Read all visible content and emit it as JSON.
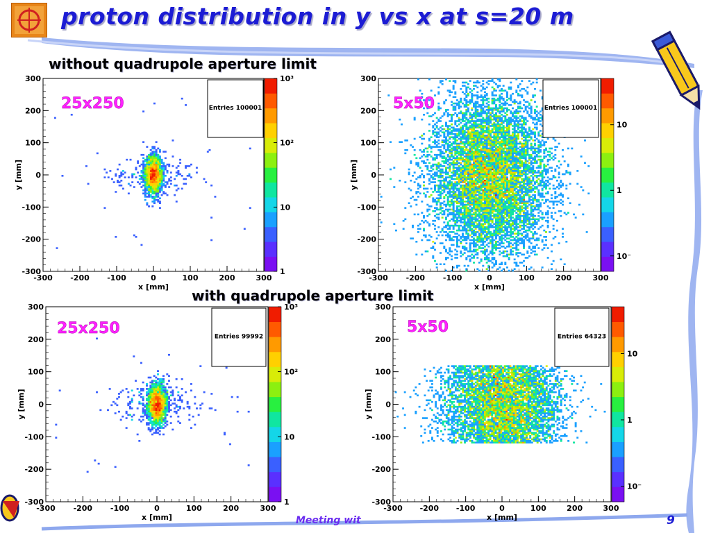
{
  "title": "proton distribution in y vs x at s=20 m",
  "sections": {
    "without": "without quadrupole aperture limit",
    "with": "with quadrupole aperture limit"
  },
  "footer": {
    "text": "Meeting wit",
    "page": "9"
  },
  "colors": {
    "title": "#1c1cd4",
    "label": "#ff22ff",
    "footer": "#6a2cf0"
  },
  "icons": [
    "pencil-icon",
    "logo-icon"
  ],
  "chart_data": [
    {
      "type": "heatmap",
      "label": "25x250",
      "entries_label": "Entries 100001",
      "xlabel": "x [mm]",
      "ylabel": "y [mm]",
      "xlim": [
        -300,
        300
      ],
      "ylim": [
        -300,
        300
      ],
      "x_ticks": [
        -300,
        -200,
        -100,
        0,
        100,
        200,
        300
      ],
      "y_ticks": [
        -300,
        -200,
        -100,
        0,
        100,
        200,
        300
      ],
      "core": {
        "x_center": 0,
        "y_center": 0,
        "x_sigma": 12,
        "y_sigma": 30
      },
      "ycut": null,
      "colorbar": {
        "scale": "log",
        "ticks": [
          {
            "label": "10³",
            "frac": 1.0
          },
          {
            "label": "10²",
            "frac": 0.667
          },
          {
            "label": "10",
            "frac": 0.333
          },
          {
            "label": "1",
            "frac": 0.0
          }
        ]
      }
    },
    {
      "type": "heatmap",
      "label": "5x50",
      "entries_label": "Entries 100001",
      "xlabel": "x [mm]",
      "ylabel": "y [mm]",
      "xlim": [
        -300,
        300
      ],
      "ylim": [
        -300,
        300
      ],
      "x_ticks": [
        -300,
        -200,
        -100,
        0,
        100,
        200,
        300
      ],
      "y_ticks": [
        -300,
        -200,
        -100,
        0,
        100,
        200,
        300
      ],
      "core": {
        "x_center": 0,
        "y_center": 0,
        "x_sigma": 80,
        "y_sigma": 130
      },
      "ycut": null,
      "colorbar": {
        "scale": "log",
        "ticks": [
          {
            "label": "10",
            "frac": 0.76
          },
          {
            "label": "1",
            "frac": 0.42
          },
          {
            "label": "10⁻",
            "frac": 0.08
          }
        ]
      }
    },
    {
      "type": "heatmap",
      "label": "25x250",
      "entries_label": "Entries  99992",
      "xlabel": "x [mm]",
      "ylabel": "y [mm]",
      "xlim": [
        -300,
        300
      ],
      "ylim": [
        -300,
        300
      ],
      "x_ticks": [
        -300,
        -200,
        -100,
        0,
        100,
        200,
        300
      ],
      "y_ticks": [
        -300,
        -200,
        -100,
        0,
        100,
        200,
        300
      ],
      "core": {
        "x_center": 0,
        "y_center": 0,
        "x_sigma": 12,
        "y_sigma": 30
      },
      "ycut": null,
      "colorbar": {
        "scale": "log",
        "ticks": [
          {
            "label": "10³",
            "frac": 1.0
          },
          {
            "label": "10²",
            "frac": 0.667
          },
          {
            "label": "10",
            "frac": 0.333
          },
          {
            "label": "1",
            "frac": 0.0
          }
        ]
      }
    },
    {
      "type": "heatmap",
      "label": "5x50",
      "entries_label": "Entries  64323",
      "xlabel": "x [mm]",
      "ylabel": "y [mm]",
      "xlim": [
        -300,
        300
      ],
      "ylim": [
        -300,
        300
      ],
      "x_ticks": [
        -300,
        -200,
        -100,
        0,
        100,
        200,
        300
      ],
      "y_ticks": [
        -300,
        -200,
        -100,
        0,
        100,
        200,
        300
      ],
      "core": {
        "x_center": 0,
        "y_center": 0,
        "x_sigma": 80,
        "y_sigma": 130
      },
      "ycut": 120,
      "colorbar": {
        "scale": "log",
        "ticks": [
          {
            "label": "10",
            "frac": 0.76
          },
          {
            "label": "1",
            "frac": 0.42
          },
          {
            "label": "10⁻",
            "frac": 0.08
          }
        ]
      }
    }
  ]
}
